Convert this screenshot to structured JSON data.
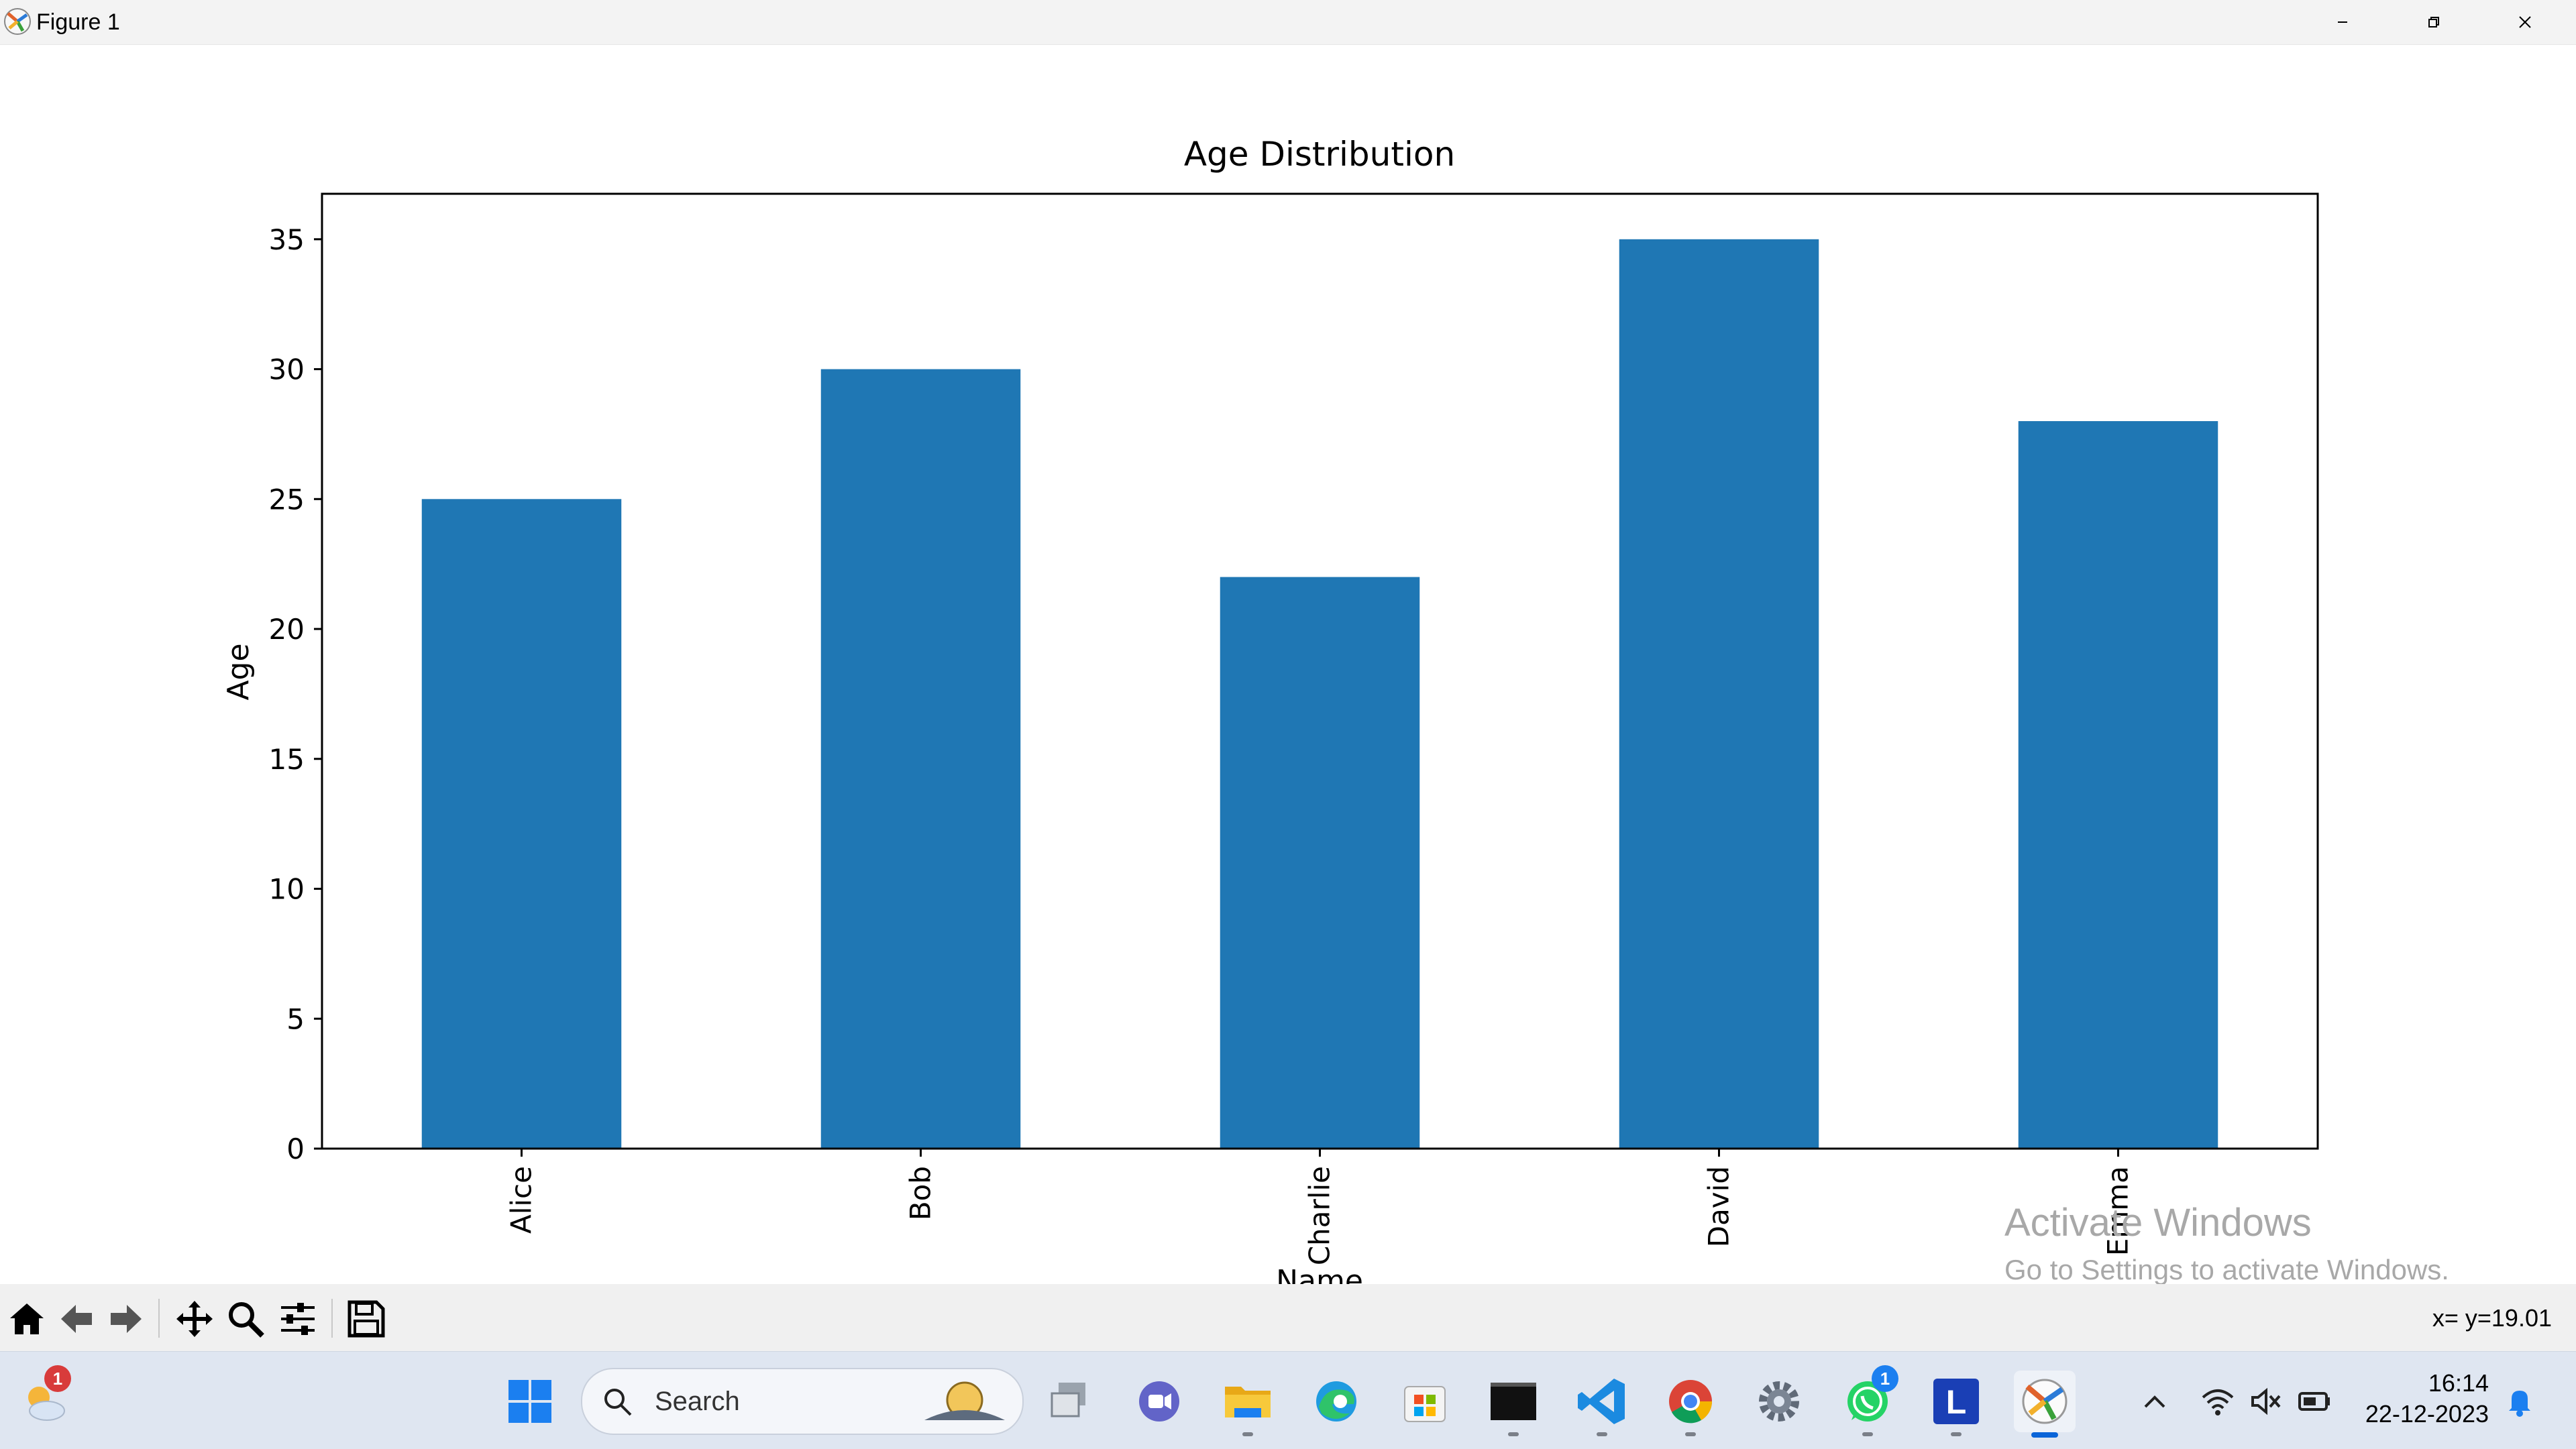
{
  "window": {
    "title": "Figure 1",
    "icon": "matplotlib-icon",
    "controls": [
      "minimize-icon",
      "restore-icon",
      "close-icon"
    ]
  },
  "chart_data": {
    "type": "bar",
    "title": "Age Distribution",
    "xlabel": "Name",
    "ylabel": "Age",
    "categories": [
      "Alice",
      "Bob",
      "Charlie",
      "David",
      "Emma"
    ],
    "values": [
      25,
      30,
      22,
      35,
      28
    ],
    "ylim": [
      0,
      36.75
    ],
    "yticks": [
      0,
      5,
      10,
      15,
      20,
      25,
      30,
      35
    ],
    "bar_color": "#1f77b4",
    "xtick_rotation": "vertical",
    "grid": false,
    "legend": "none"
  },
  "watermark": {
    "line1": "Activate Windows",
    "line2": "Go to Settings to activate Windows."
  },
  "toolbar": {
    "buttons": [
      "home-icon",
      "back-icon",
      "forward-icon",
      "pan-icon",
      "zoom-icon",
      "configure-subplots-icon",
      "save-icon"
    ],
    "coords": "x= y=19.01"
  },
  "taskbar": {
    "search_label": "Search",
    "weather_badge": "1",
    "whatsapp_badge": "1",
    "l_app_letter": "L",
    "apps": [
      "weather-icon",
      "start-icon",
      "search-icon",
      "task-view-icon",
      "teams-icon",
      "file-explorer-icon",
      "edge-icon",
      "store-icon",
      "terminal-icon",
      "vscode-icon",
      "chrome-icon",
      "settings-icon",
      "whatsapp-icon",
      "l-app-icon",
      "matplotlib-icon"
    ],
    "tray": [
      "chevron-up-icon",
      "wifi-icon",
      "speaker-muted-icon",
      "battery-icon",
      "bell-icon"
    ],
    "time": "16:14",
    "date": "22-12-2023"
  }
}
